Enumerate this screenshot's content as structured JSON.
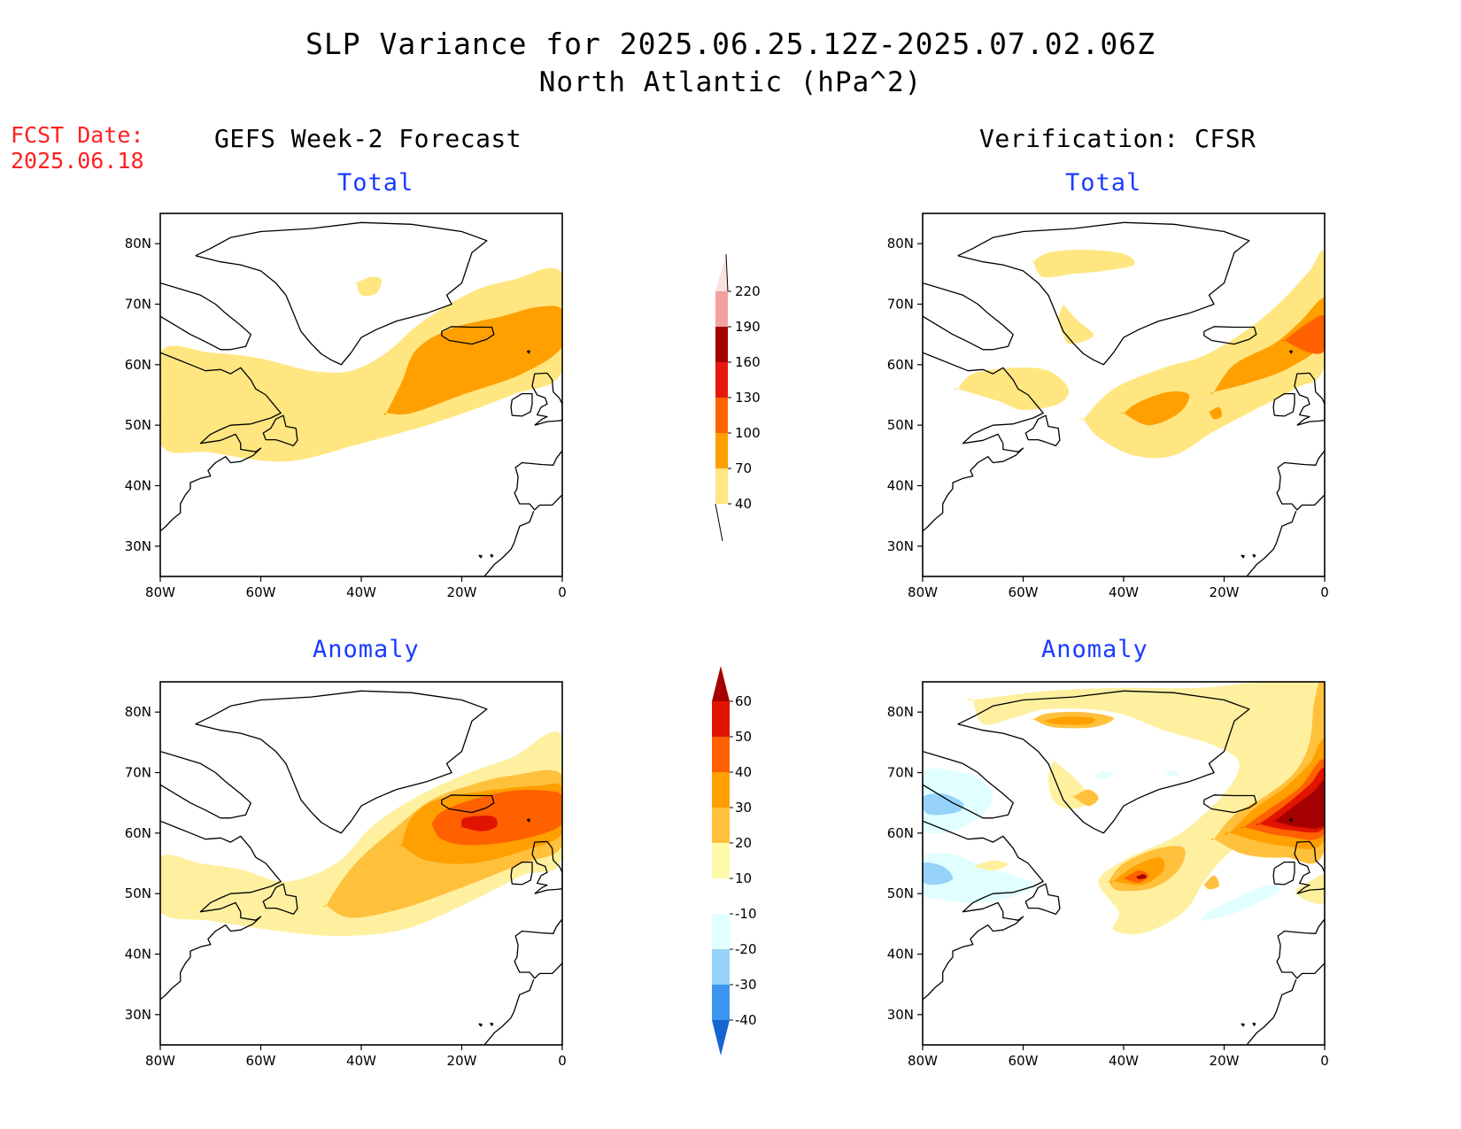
{
  "header": {
    "title": "SLP Variance for 2025.06.25.12Z-2025.07.02.06Z",
    "subtitle": "North Atlantic (hPa^2)",
    "fcst_date_label": "FCST Date:",
    "fcst_date_value": "2025.06.18"
  },
  "columns": {
    "left": "GEFS Week-2 Forecast",
    "right": "Verification: CFSR"
  },
  "panels": {
    "total_label": "Total",
    "anomaly_label": "Anomaly"
  },
  "axes": {
    "lon_labels": [
      "80W",
      "60W",
      "40W",
      "20W",
      "0"
    ],
    "lat_labels": [
      "80N",
      "70N",
      "60N",
      "50N",
      "40N",
      "30N"
    ]
  },
  "colorbars": {
    "total": {
      "labels": [
        "40",
        "70",
        "100",
        "130",
        "160",
        "190",
        "220"
      ],
      "colors": [
        "#ffe680",
        "#ff9f00",
        "#ff6400",
        "#e31a0b",
        "#a50000",
        "#f4a0a0",
        "#fce0e0"
      ]
    },
    "anomaly": {
      "labels": [
        "-40",
        "-30",
        "-20",
        "-10",
        "10",
        "20",
        "30",
        "40",
        "50",
        "60"
      ],
      "colors": [
        "#1464d2",
        "#3c96f0",
        "#96d2fa",
        "#e1ffff",
        "#ffffff",
        "#fffaaa",
        "#ffc03c",
        "#ff9f00",
        "#ff6000",
        "#e11400",
        "#a50000"
      ]
    }
  },
  "palette": {
    "c_p1": "#fff0a0",
    "c_p2": "#ffe680",
    "c_p3": "#ffc03c",
    "c_p4": "#ff9f00",
    "c_p5": "#ff6000",
    "c_p6": "#e11400",
    "c_p7": "#a50000",
    "c_n1": "#e1ffff",
    "c_n2": "#96d2fa"
  }
}
